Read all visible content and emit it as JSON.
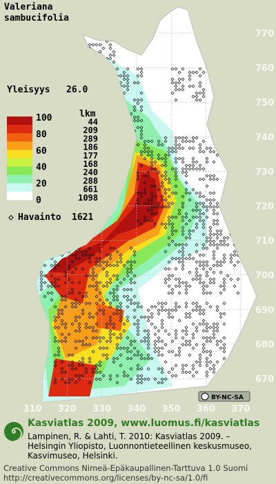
{
  "title": {
    "lines": [
      "Valeriana",
      "sambucifolia"
    ]
  },
  "frequency": {
    "label": "Yleisyys",
    "value": "26.0"
  },
  "legend": {
    "scale": [
      100,
      80,
      60,
      40,
      20,
      0
    ],
    "count_header": "lkm",
    "counts": [
      44,
      209,
      289,
      186,
      177,
      168,
      240,
      288,
      661,
      1098
    ],
    "colors": [
      "#b01010",
      "#dd2a10",
      "#f06010",
      "#f8a018",
      "#f8e020",
      "#c8f040",
      "#88e858",
      "#90f0b0",
      "#c8f8f0",
      "#ffffff"
    ],
    "observation": {
      "label": "Havainto",
      "value": "1621"
    }
  },
  "map": {
    "northing_labels": [
      "770",
      "760",
      "750",
      "740",
      "730",
      "720",
      "710",
      "700",
      "690",
      "680",
      "670"
    ],
    "easting_labels": [
      "310",
      "320",
      "330",
      "340",
      "350",
      "360",
      "370"
    ],
    "license_badge": "BY-NC-SA"
  },
  "footer": {
    "headline": "Kasviatlas 2009, www.luomus.fi/kasviatlas",
    "citation": [
      "Lampinen, R. & Lahti, T. 2010: Kasviatlas 2009. –",
      "Helsingin Yliopisto, Luonnontieteellinen keskusmuseo,",
      "Kasvimuseo, Helsinki."
    ],
    "license": [
      "Creative Commons Nimeä-Epäkaupallinen-Tarttuva 1.0 Suomi",
      "http://creativecommons.org/licenses/by-nc-sa/1.0/fi"
    ]
  }
}
